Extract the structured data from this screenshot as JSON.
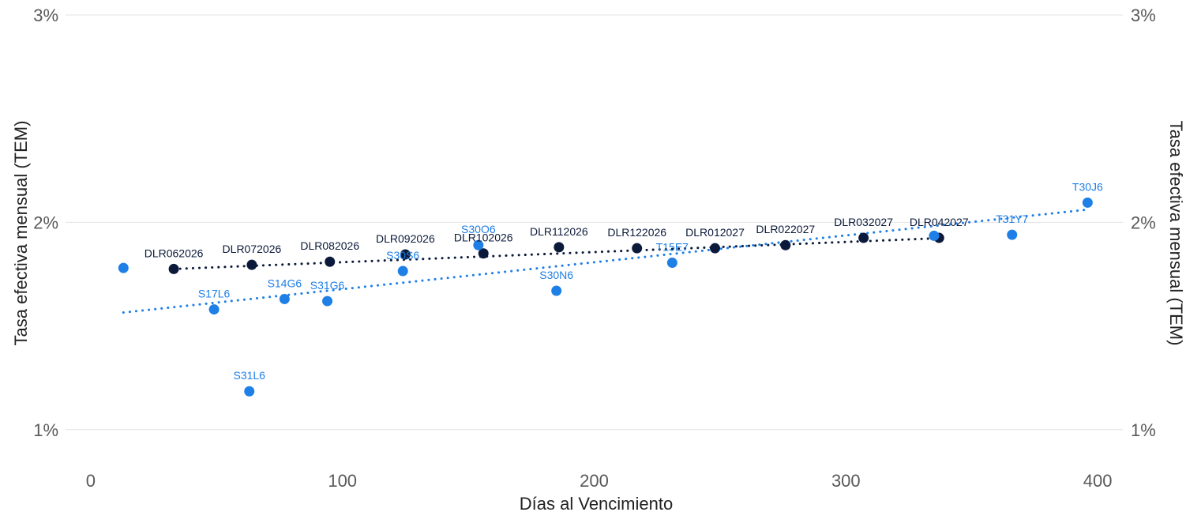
{
  "chart_data": {
    "type": "scatter",
    "title": "",
    "xlabel": "Días al Vencimiento",
    "ylabel": "Tasa efectiva mensual (TEM)",
    "ylabel_right": "Tasa efectiva mensual (TEM)",
    "xlim": [
      -10,
      410
    ],
    "ylim": [
      0.9,
      3.0
    ],
    "x_ticks": [
      0,
      100,
      200,
      300,
      400
    ],
    "x_tick_labels": [
      "0",
      "100",
      "200",
      "300",
      "400"
    ],
    "y_ticks": [
      1,
      2,
      3
    ],
    "y_tick_labels": [
      "1%",
      "2%",
      "3%"
    ],
    "grid": "horizontal",
    "legend": "none",
    "series": [
      {
        "color": "#0b1a3a",
        "trend_color": "#0b1a3a",
        "trend": {
          "x": [
            33,
            336
          ],
          "y": [
            1.775,
            1.923
          ]
        },
        "points": [
          {
            "label": "DLR062026",
            "x": 33,
            "y": 1.775
          },
          {
            "label": "DLR072026",
            "x": 64,
            "y": 1.795
          },
          {
            "label": "DLR082026",
            "x": 95,
            "y": 1.81
          },
          {
            "label": "DLR092026",
            "x": 125,
            "y": 1.845
          },
          {
            "label": "DLR102026",
            "x": 156,
            "y": 1.85
          },
          {
            "label": "DLR112026",
            "x": 186,
            "y": 1.88
          },
          {
            "label": "DLR122026",
            "x": 217,
            "y": 1.875
          },
          {
            "label": "DLR012027",
            "x": 248,
            "y": 1.875
          },
          {
            "label": "DLR022027",
            "x": 276,
            "y": 1.89
          },
          {
            "label": "DLR032027",
            "x": 307,
            "y": 1.925
          },
          {
            "label": "DLR042027",
            "x": 337,
            "y": 1.925
          }
        ]
      },
      {
        "color": "#1e7fe6",
        "trend_color": "#1e7fe6",
        "trend": {
          "x": [
            13,
            395
          ],
          "y": [
            1.565,
            2.06
          ]
        },
        "points": [
          {
            "label": "",
            "x": 13,
            "y": 1.78
          },
          {
            "label": "S17L6",
            "x": 49,
            "y": 1.58
          },
          {
            "label": "S31L6",
            "x": 63,
            "y": 1.185
          },
          {
            "label": "S14G6",
            "x": 77,
            "y": 1.63
          },
          {
            "label": "S31G6",
            "x": 94,
            "y": 1.62
          },
          {
            "label": "S30S6",
            "x": 124,
            "y": 1.765
          },
          {
            "label": "S30O6",
            "x": 154,
            "y": 1.89
          },
          {
            "label": "S30N6",
            "x": 185,
            "y": 1.67
          },
          {
            "label": "T15E7",
            "x": 231,
            "y": 1.805
          },
          {
            "label": "",
            "x": 335,
            "y": 1.935
          },
          {
            "label": "T31Y7",
            "x": 366,
            "y": 1.94
          },
          {
            "label": "T30J6",
            "x": 396,
            "y": 2.095
          }
        ]
      }
    ]
  }
}
